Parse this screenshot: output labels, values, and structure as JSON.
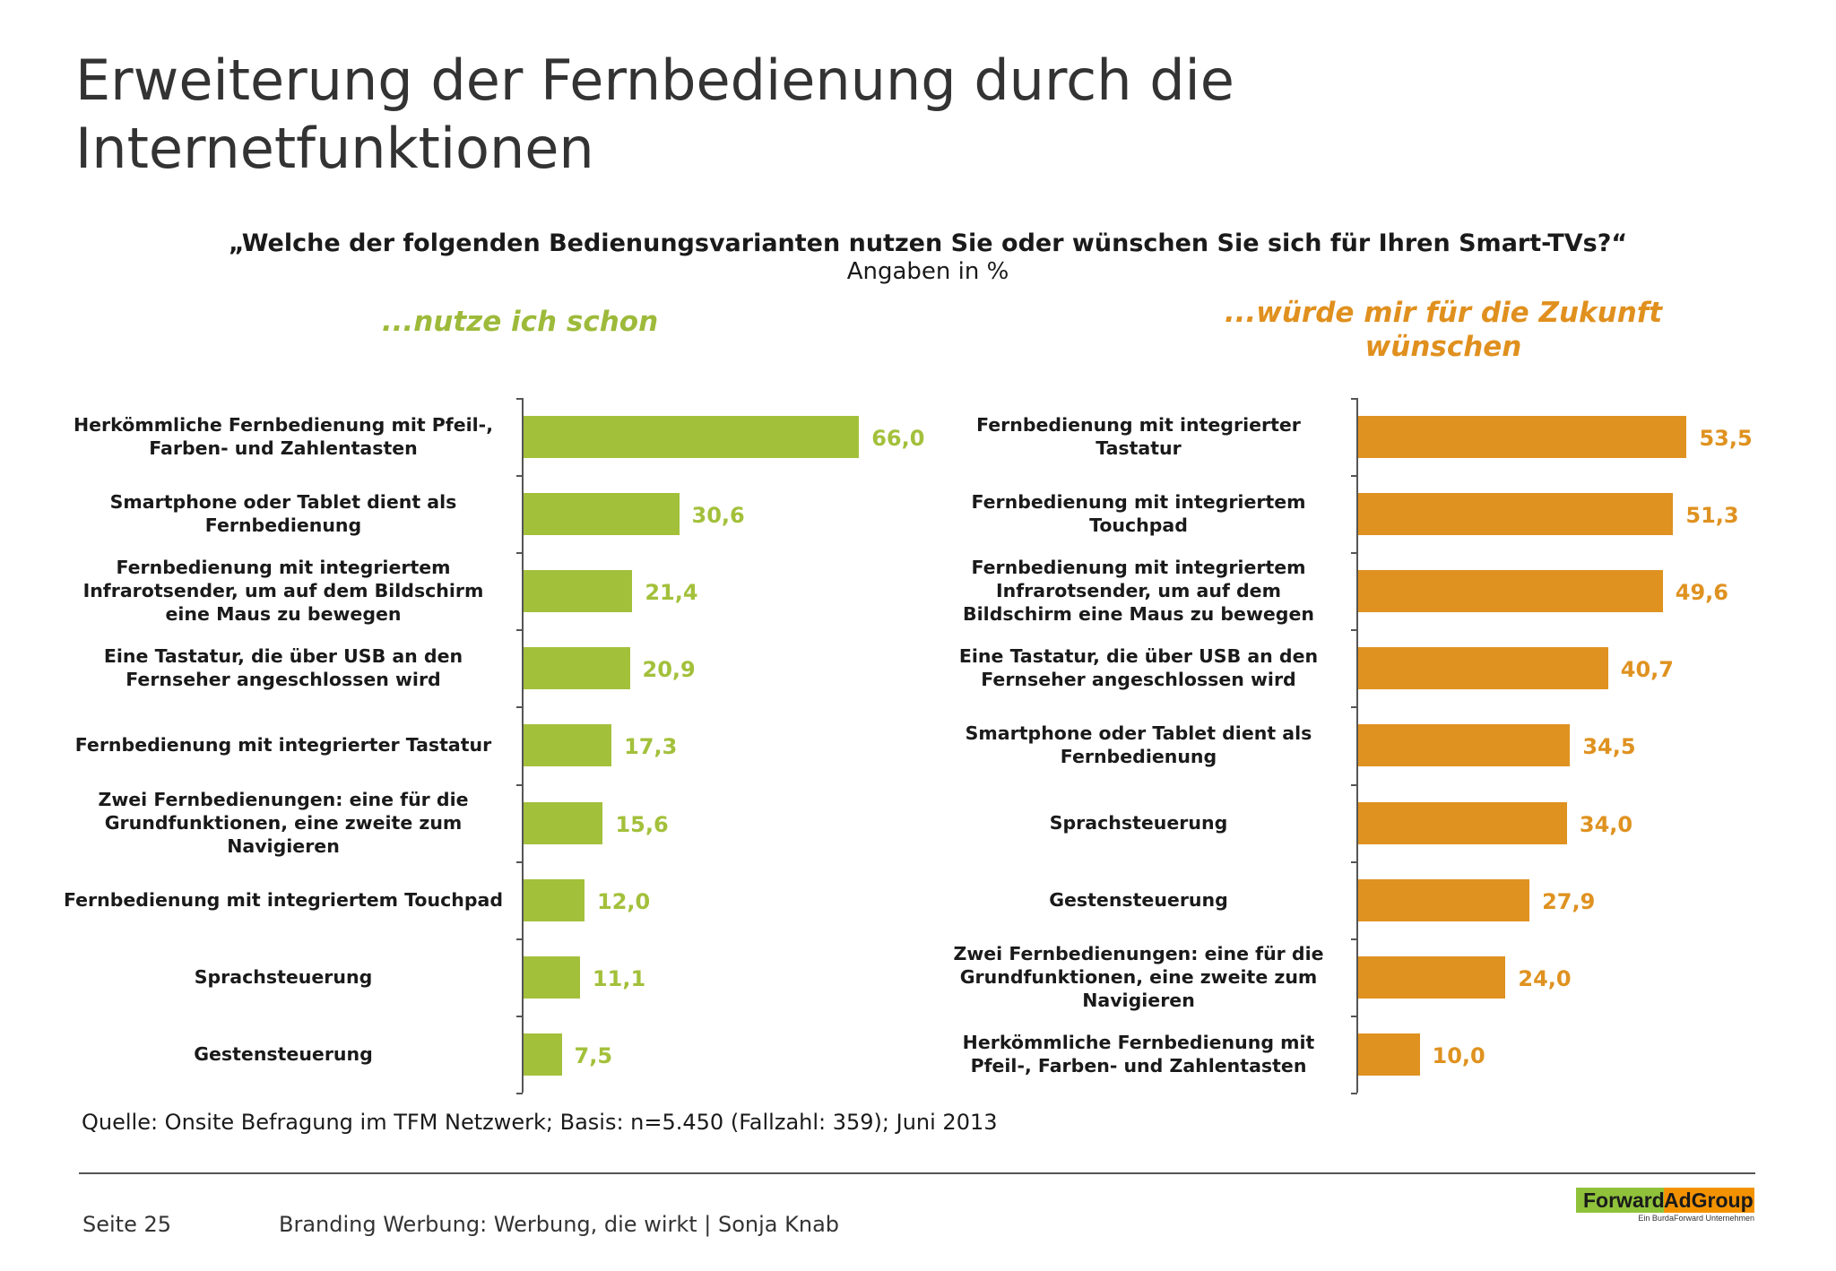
{
  "title": "Erweiterung der Fernbedienung durch die Internetfunktionen",
  "question": "„Welche der folgenden Bedienungsvarianten nutzen Sie oder wünschen Sie sich für Ihren Smart-TVs?“",
  "unit": "Angaben in %",
  "chart_data": [
    {
      "type": "bar",
      "orientation": "horizontal",
      "title": "...nutze ich schon",
      "color": "#a3c03b",
      "categories": [
        "Herkömmliche Fernbedienung mit Pfeil-, Farben- und Zahlentasten",
        "Smartphone oder Tablet dient als Fernbedienung",
        "Fernbedienung mit integriertem Infrarotsender, um auf dem Bildschirm eine Maus zu bewegen",
        "Eine Tastatur, die über USB an den Fernseher angeschlossen wird",
        "Fernbedienung mit integrierter Tastatur",
        "Zwei Fernbedienungen: eine für die Grundfunktionen, eine zweite zum Navigieren",
        "Fernbedienung mit integriertem Touchpad",
        "Sprachsteuerung",
        "Gestensteuerung"
      ],
      "values": [
        66.0,
        30.6,
        21.4,
        20.9,
        17.3,
        15.6,
        12.0,
        11.1,
        7.5
      ],
      "value_labels": [
        "66,0",
        "30,6",
        "21,4",
        "20,9",
        "17,3",
        "15,6",
        "12,0",
        "11,1",
        "7,5"
      ]
    },
    {
      "type": "bar",
      "orientation": "horizontal",
      "title": "...würde mir für die Zukunft wünschen",
      "color": "#df9220",
      "categories": [
        "Fernbedienung mit integrierter Tastatur",
        "Fernbedienung mit integriertem Touchpad",
        "Fernbedienung mit integriertem Infrarotsender, um auf dem Bildschirm eine Maus zu bewegen",
        "Eine Tastatur, die über USB an den Fernseher angeschlossen wird",
        "Smartphone oder Tablet dient als Fernbedienung",
        "Sprachsteuerung",
        "Gestensteuerung",
        "Zwei Fernbedienungen: eine für die Grundfunktionen, eine zweite zum Navigieren",
        "Herkömmliche Fernbedienung mit Pfeil-, Farben- und Zahlentasten"
      ],
      "values": [
        53.5,
        51.3,
        49.6,
        40.7,
        34.5,
        34.0,
        27.9,
        24.0,
        10.0
      ],
      "value_labels": [
        "53,5",
        "51,3",
        "49,6",
        "40,7",
        "34,5",
        "34,0",
        "27,9",
        "24,0",
        "10,0"
      ]
    }
  ],
  "source": "Quelle: Onsite Befragung im TFM Netzwerk; Basis: n=5.450 (Fallzahl: 359); Juni 2013",
  "footer": {
    "page": "Seite 25",
    "text": "Branding Werbung: Werbung, die wirkt | Sonja Knab",
    "logo_left": "Forward",
    "logo_right": "AdGroup",
    "logo_sub": "Ein BurdaForward Unternehmen"
  }
}
